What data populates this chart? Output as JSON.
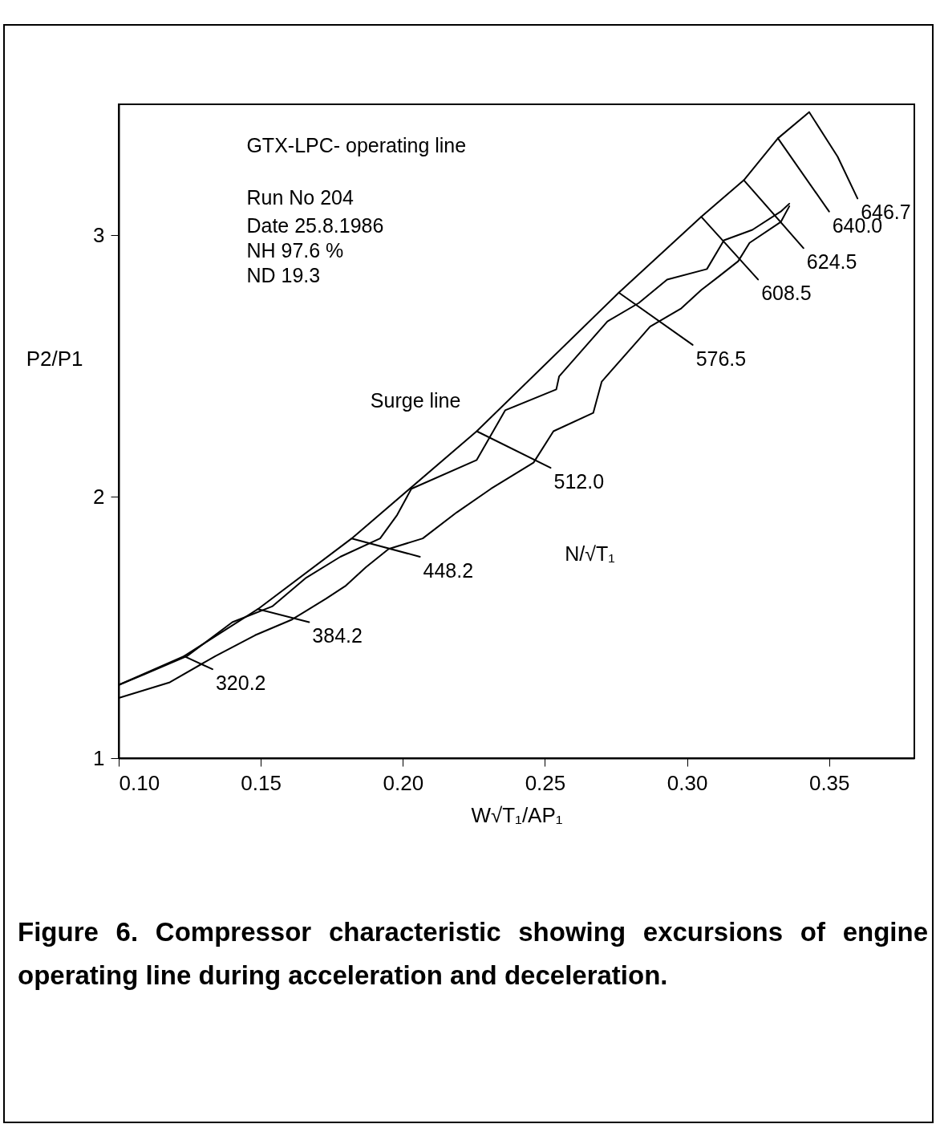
{
  "chart_data": {
    "type": "line",
    "title": "GTX-LPC- operating line",
    "xlabel": "W√T₁/AP₁",
    "ylabel": "P2/P1",
    "xlim": [
      0.1,
      0.38
    ],
    "ylim": [
      1,
      3.5
    ],
    "xticks": [
      {
        "value": 0.1,
        "label": "0.10"
      },
      {
        "value": 0.15,
        "label": "0.15"
      },
      {
        "value": 0.2,
        "label": "0.20"
      },
      {
        "value": 0.25,
        "label": "0.25"
      },
      {
        "value": 0.3,
        "label": "0.30"
      },
      {
        "value": 0.35,
        "label": "0.35"
      }
    ],
    "yticks": [
      1,
      2,
      3
    ],
    "grid": false,
    "marker": "none",
    "line_style": "solid",
    "series": [
      {
        "name": "Surge line",
        "color": "#000000",
        "x": [
          0.1,
          0.123,
          0.149,
          0.182,
          0.226,
          0.276,
          0.305,
          0.32,
          0.332,
          0.343
        ],
        "values": [
          1.28,
          1.39,
          1.57,
          1.84,
          2.25,
          2.78,
          3.07,
          3.21,
          3.37,
          3.47
        ]
      },
      {
        "name": "320.2",
        "color": "#000000",
        "x": [
          0.123,
          0.133
        ],
        "values": [
          1.39,
          1.34
        ]
      },
      {
        "name": "384.2",
        "color": "#000000",
        "x": [
          0.149,
          0.167
        ],
        "values": [
          1.57,
          1.52
        ]
      },
      {
        "name": "448.2",
        "color": "#000000",
        "x": [
          0.182,
          0.206
        ],
        "values": [
          1.84,
          1.77
        ]
      },
      {
        "name": "512.0",
        "color": "#000000",
        "x": [
          0.226,
          0.252
        ],
        "values": [
          2.25,
          2.11
        ]
      },
      {
        "name": "576.5",
        "color": "#000000",
        "x": [
          0.276,
          0.302
        ],
        "values": [
          2.78,
          2.58
        ]
      },
      {
        "name": "608.5",
        "color": "#000000",
        "x": [
          0.305,
          0.325
        ],
        "values": [
          3.07,
          2.83
        ]
      },
      {
        "name": "624.5",
        "color": "#000000",
        "x": [
          0.32,
          0.341
        ],
        "values": [
          3.21,
          2.95
        ]
      },
      {
        "name": "640.0",
        "color": "#000000",
        "x": [
          0.332,
          0.35
        ],
        "values": [
          3.37,
          3.09
        ]
      },
      {
        "name": "646.7",
        "color": "#000000",
        "x": [
          0.343,
          0.353,
          0.36
        ],
        "values": [
          3.47,
          3.3,
          3.14
        ]
      },
      {
        "color": "#000000",
        "x": [
          0.1,
          0.109,
          0.124,
          0.14,
          0.154,
          0.166,
          0.178,
          0.192,
          0.198,
          0.203,
          0.226,
          0.236,
          0.254,
          0.255,
          0.272,
          0.283,
          0.293,
          0.307,
          0.313,
          0.323,
          0.333,
          0.336
        ],
        "values": [
          1.28,
          1.32,
          1.39,
          1.52,
          1.58,
          1.69,
          1.77,
          1.84,
          1.93,
          2.03,
          2.14,
          2.33,
          2.41,
          2.46,
          2.67,
          2.74,
          2.83,
          2.87,
          2.98,
          3.02,
          3.09,
          3.12
        ]
      },
      {
        "color": "#000000",
        "x": [
          0.1,
          0.118,
          0.134,
          0.148,
          0.161,
          0.173,
          0.18,
          0.187,
          0.195,
          0.207,
          0.219,
          0.231,
          0.246,
          0.253,
          0.267,
          0.27,
          0.283,
          0.287,
          0.298,
          0.305,
          0.311,
          0.318,
          0.322,
          0.333,
          0.336
        ],
        "values": [
          1.23,
          1.29,
          1.39,
          1.47,
          1.53,
          1.61,
          1.66,
          1.73,
          1.8,
          1.84,
          1.94,
          2.03,
          2.13,
          2.25,
          2.32,
          2.44,
          2.6,
          2.65,
          2.72,
          2.79,
          2.84,
          2.9,
          2.97,
          3.05,
          3.11
        ]
      }
    ],
    "annotations": [
      "Run No 204",
      "Date 25.8.1986",
      "NH 97.6 %",
      "ND 19.3",
      "N/√T₁",
      "Figure 6. Compressor characteristic showing excursions of engine operating line during acceleration and deceleration."
    ]
  }
}
